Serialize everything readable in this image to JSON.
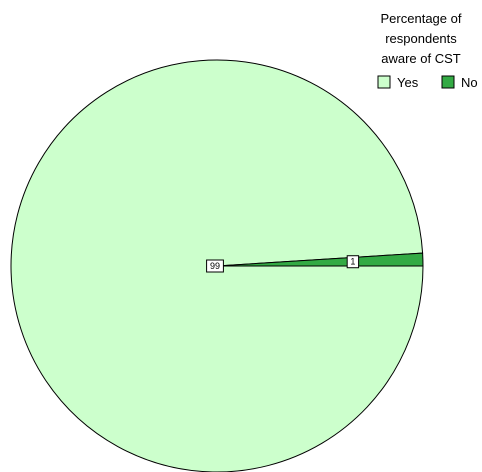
{
  "chart_data": {
    "type": "pie",
    "legend": {
      "title_lines": [
        "Percentage of",
        "respondents",
        "aware of CST"
      ],
      "placement": "top-right"
    },
    "slices": [
      {
        "label": "Yes",
        "value": 99,
        "color": "#ccffcc"
      },
      {
        "label": "No",
        "value": 1,
        "color": "#33aa44"
      }
    ],
    "start_angle_deg": 0,
    "direction": "clockwise"
  }
}
